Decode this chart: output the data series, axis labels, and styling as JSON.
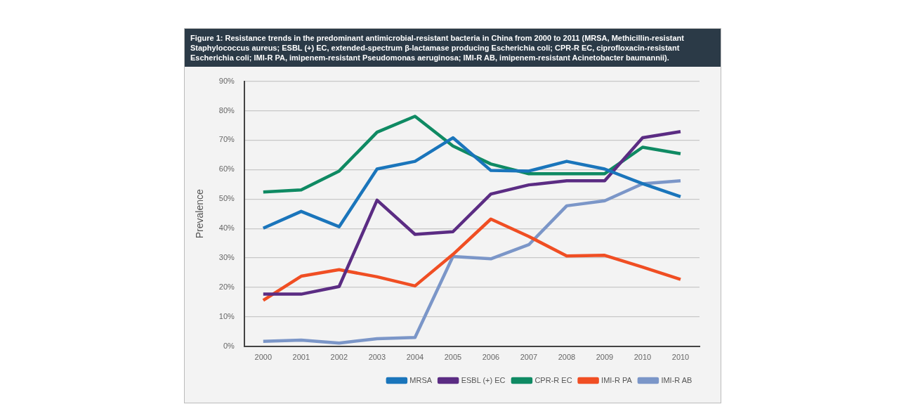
{
  "chart_data": {
    "type": "line",
    "title": "Figure 1: Resistance trends in the predominant antimicrobial-resistant bacteria in China from 2000 to 2011 (MRSA, Methicillin-resistant Staphylococcus aureus; ESBL (+) EC, extended-spectrum β-lactamase producing Escherichia coli; CPR-R EC, ciprofloxacin-resistant Escherichia coli; IMI-R PA, imipenem-resistant Pseudomonas aeruginosa; IMI-R AB, imipenem-resistant Acinetobacter baumannii).",
    "ylabel": "Prevalence",
    "categories": [
      "2000",
      "2001",
      "2002",
      "2003",
      "2004",
      "2005",
      "2006",
      "2007",
      "2008",
      "2009",
      "2010",
      "2010"
    ],
    "series": [
      {
        "name": "MRSA",
        "color": "#1a75bb",
        "values": [
          40.1,
          45.8,
          40.6,
          60.2,
          62.8,
          70.8,
          59.7,
          59.5,
          62.8,
          60.2,
          55.2,
          50.8
        ]
      },
      {
        "name": "ESBL (+) EC",
        "color": "#5b2c83",
        "values": [
          17.7,
          17.7,
          20.3,
          49.6,
          38,
          38.9,
          51.7,
          54.8,
          56.2,
          56.2,
          70.8,
          72.9
        ]
      },
      {
        "name": "CPR-R EC",
        "color": "#0f8a63",
        "values": [
          52.4,
          53.1,
          59.5,
          72.7,
          78.1,
          68,
          61.9,
          58.6,
          58.6,
          58.6,
          67.6,
          65.4
        ]
      },
      {
        "name": "IMI-R PA",
        "color": "#f04e23",
        "values": [
          15.6,
          23.8,
          26,
          23.6,
          20.5,
          31.2,
          43.2,
          37.3,
          30.7,
          30.9,
          26.9,
          22.7
        ]
      },
      {
        "name": "IMI-R AB",
        "color": "#7b96c8",
        "values": [
          1.7,
          2.1,
          1.1,
          2.6,
          3,
          30.5,
          29.7,
          34.5,
          47.7,
          49.4,
          55.2,
          56.2
        ]
      }
    ],
    "ylim": [
      0,
      90
    ],
    "yticks": [
      {
        "value": 0,
        "label": "0%"
      },
      {
        "value": 10,
        "label": "10%"
      },
      {
        "value": 20,
        "label": "20%"
      },
      {
        "value": 30,
        "label": "30%"
      },
      {
        "value": 40,
        "label": "40%"
      },
      {
        "value": 50,
        "label": "50%"
      },
      {
        "value": 60,
        "label": "60%"
      },
      {
        "value": 70,
        "label": "70%"
      },
      {
        "value": 80,
        "label": "80%"
      },
      {
        "value": 90,
        "label": "90%"
      }
    ],
    "grid": "y",
    "legend": "bottom right",
    "marker": "none",
    "line_style": "solid"
  }
}
